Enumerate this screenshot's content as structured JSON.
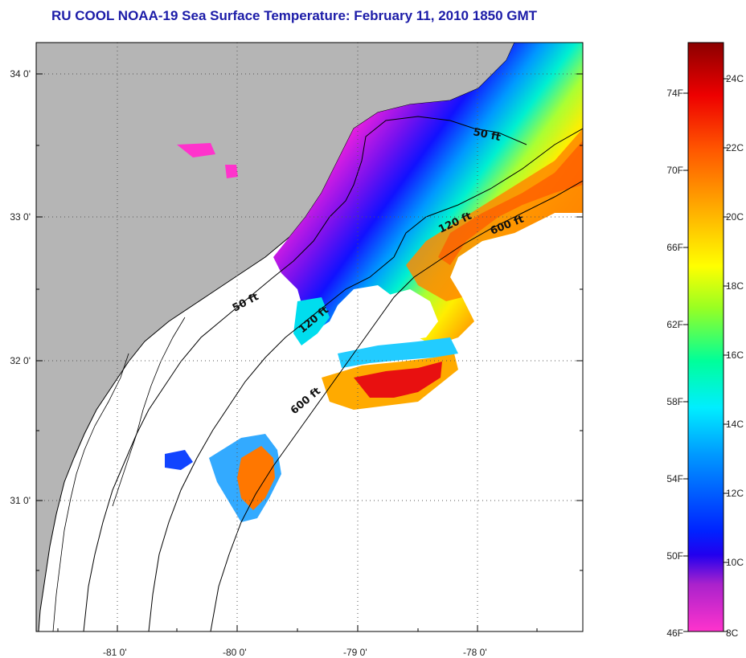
{
  "title": "RU COOL  NOAA-19  Sea Surface Temperature:  February 11, 2010 1850 GMT",
  "latitude_labels": [
    "34 0'",
    "33 0'",
    "32 0'",
    "31 0'"
  ],
  "longitude_labels": [
    "-81 0'",
    "-80 0'",
    "-79 0'",
    "-78 0'"
  ],
  "contour_labels": {
    "c50_north": "50 ft",
    "c50_south": "50 ft",
    "c120_north": "120 ft",
    "c120_south": "120 ft",
    "c600_north": "600 ft",
    "c600_south": "600 ft"
  },
  "colorbar": {
    "fahrenheit_labels": [
      "74F",
      "70F",
      "66F",
      "62F",
      "58F",
      "54F",
      "50F",
      "46F"
    ],
    "celsius_labels": [
      "24C",
      "22C",
      "20C",
      "18C",
      "16C",
      "14C",
      "12C",
      "10C",
      "8C"
    ],
    "colors_bottom_to_top": [
      "#ff33cc",
      "#8822cc",
      "#0000ff",
      "#0088ff",
      "#00eeff",
      "#22ffaa",
      "#aaff22",
      "#ffee00",
      "#ffaa00",
      "#ff5500",
      "#ee0000",
      "#990000"
    ]
  },
  "land_color": "#b5b5b5",
  "title_color": "#1c1ca8"
}
